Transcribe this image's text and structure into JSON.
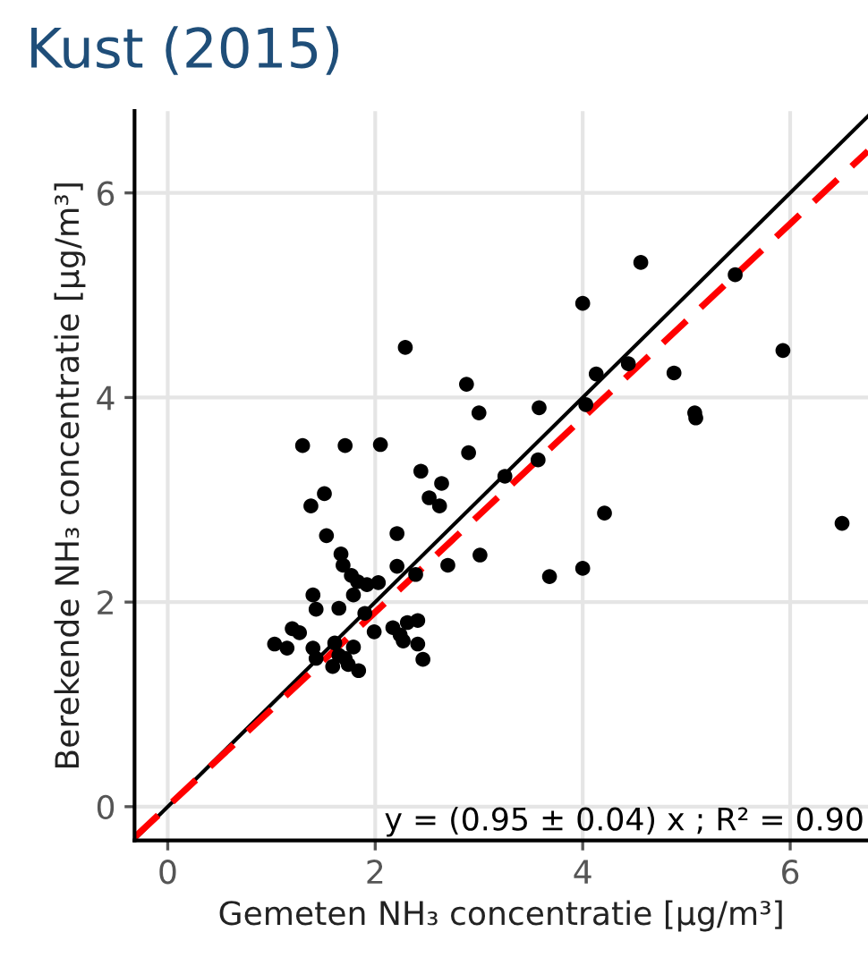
{
  "chart_data": {
    "type": "scatter",
    "title": "Kust (2015)",
    "xlabel": "Gemeten NH₃ concentratie [µg/m³]",
    "ylabel": "Berekende NH₃ concentratie [µg/m³]",
    "annotations": [
      "y = (0.95 ± 0.04) x ; R² = 0.90"
    ],
    "xlim": [
      -0.32,
      6.75
    ],
    "ylim": [
      -0.33,
      6.8
    ],
    "xticks": [
      0,
      2,
      4,
      6
    ],
    "yticks": [
      0,
      2,
      4,
      6
    ],
    "grid": true,
    "legend": false,
    "series": [
      {
        "marker": "circle",
        "color": "#000000",
        "x": [
          4.56,
          5.47,
          4.0,
          2.29,
          5.93,
          4.44,
          4.13,
          4.88,
          2.88,
          3.0,
          3.58,
          4.03,
          5.08,
          5.09,
          1.3,
          1.71,
          2.05,
          2.9,
          3.57,
          2.44,
          3.25,
          2.64,
          1.51,
          1.38,
          2.52,
          2.62,
          4.21,
          6.5,
          1.53,
          2.21,
          1.67,
          3.01,
          1.69,
          2.21,
          2.7,
          4.0,
          3.68,
          2.39,
          1.77,
          1.83,
          1.92,
          2.03,
          1.79,
          1.4,
          1.43,
          1.65,
          1.9,
          1.99,
          2.17,
          2.24,
          2.31,
          2.41,
          2.27,
          2.41,
          2.46,
          1.2,
          1.27,
          1.03,
          1.15,
          1.4,
          1.61,
          1.79,
          1.43,
          1.59,
          1.71,
          1.74,
          1.84,
          1.65
        ],
        "values": [
          5.32,
          5.2,
          4.92,
          4.49,
          4.46,
          4.33,
          4.23,
          4.24,
          4.13,
          3.85,
          3.9,
          3.93,
          3.85,
          3.8,
          3.53,
          3.53,
          3.54,
          3.46,
          3.39,
          3.28,
          3.23,
          3.16,
          3.06,
          2.94,
          3.02,
          2.94,
          2.87,
          2.77,
          2.65,
          2.67,
          2.47,
          2.46,
          2.36,
          2.35,
          2.36,
          2.33,
          2.25,
          2.27,
          2.26,
          2.2,
          2.17,
          2.19,
          2.07,
          2.07,
          1.93,
          1.94,
          1.89,
          1.71,
          1.75,
          1.68,
          1.8,
          1.82,
          1.62,
          1.59,
          1.44,
          1.74,
          1.7,
          1.59,
          1.55,
          1.55,
          1.6,
          1.56,
          1.45,
          1.37,
          1.45,
          1.39,
          1.33,
          1.48
        ]
      },
      {
        "type": "line",
        "color": "#000000",
        "line_style": "solid",
        "x": [
          -0.32,
          6.75
        ],
        "values": [
          -0.32,
          6.75
        ]
      },
      {
        "type": "line",
        "color": "#ff0000",
        "line_style": "dashed",
        "x": [
          -0.32,
          6.75
        ],
        "values": [
          -0.3,
          6.41
        ]
      }
    ]
  }
}
